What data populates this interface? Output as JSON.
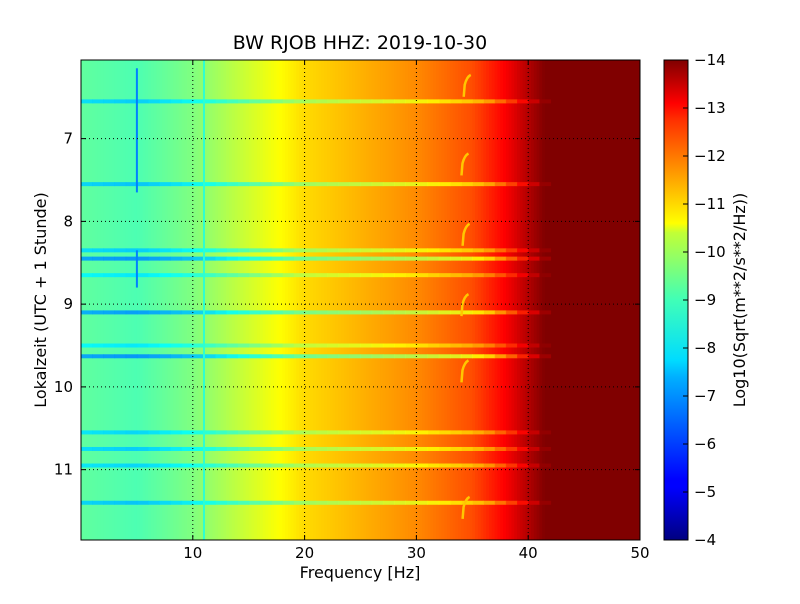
{
  "chart_data": {
    "type": "heatmap",
    "title": "BW RJOB HHZ: 2019-10-30",
    "xlabel": "Frequency [Hz]",
    "ylabel": "Lokalzeit (UTC + 1 Stunde)",
    "xlim": [
      0,
      50
    ],
    "ylim_top_to_bottom": [
      6.05,
      11.85
    ],
    "x_ticks": [
      10,
      20,
      30,
      40,
      50
    ],
    "y_ticks": [
      7,
      8,
      9,
      10,
      11
    ],
    "grid": true,
    "colormap": "jet",
    "colorbar": {
      "label": "Log10(Sqrt(m**2/s**2/Hz))",
      "range": [
        -14,
        -4
      ],
      "ticks": [
        -4,
        -5,
        -6,
        -7,
        -8,
        -9,
        -10,
        -11,
        -12,
        -13,
        -14
      ]
    },
    "spectral_profile": [
      {
        "freq": 0,
        "value": -8.7
      },
      {
        "freq": 5,
        "value": -8.5
      },
      {
        "freq": 10,
        "value": -9.0
      },
      {
        "freq": 15,
        "value": -9.8
      },
      {
        "freq": 20,
        "value": -10.6
      },
      {
        "freq": 25,
        "value": -11.0
      },
      {
        "freq": 30,
        "value": -11.4
      },
      {
        "freq": 35,
        "value": -12.0
      },
      {
        "freq": 38,
        "value": -12.8
      },
      {
        "freq": 40,
        "value": -13.5
      },
      {
        "freq": 41.5,
        "value": -14.0
      },
      {
        "freq": 50,
        "value": -14.0
      }
    ],
    "spectral_lines": [
      {
        "freq": 5.0,
        "time_start": 6.15,
        "time_end": 7.65,
        "value": -6.5
      },
      {
        "freq": 5.0,
        "time_start": 8.35,
        "time_end": 8.8,
        "value": -6.5
      },
      {
        "freq": 11.0,
        "time_start": 6.05,
        "time_end": 11.85,
        "value": -8.2
      }
    ],
    "bright_bands": [
      {
        "time": 6.55,
        "value_offset": 1.3
      },
      {
        "time": 7.55,
        "value_offset": 1.4
      },
      {
        "time": 8.35,
        "value_offset": 1.3
      },
      {
        "time": 8.45,
        "value_offset": 1.9
      },
      {
        "time": 8.65,
        "value_offset": 1.0
      },
      {
        "time": 9.1,
        "value_offset": 1.8
      },
      {
        "time": 9.5,
        "value_offset": 1.0
      },
      {
        "time": 9.63,
        "value_offset": 1.9
      },
      {
        "time": 10.55,
        "value_offset": 1.2
      },
      {
        "time": 10.75,
        "value_offset": 1.3
      },
      {
        "time": 10.95,
        "value_offset": 1.2
      },
      {
        "time": 11.4,
        "value_offset": 1.4
      }
    ],
    "hook_features": [
      {
        "freq": 34.5,
        "time": 6.35
      },
      {
        "freq": 34.3,
        "time": 7.3
      },
      {
        "freq": 34.4,
        "time": 8.15
      },
      {
        "freq": 34.3,
        "time": 9.0
      },
      {
        "freq": 34.3,
        "time": 9.8
      },
      {
        "freq": 34.4,
        "time": 11.45
      }
    ]
  }
}
